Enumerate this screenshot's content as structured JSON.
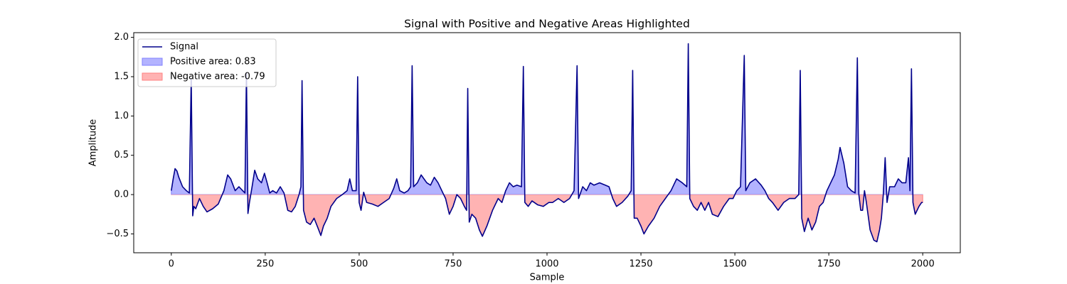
{
  "chart_data": {
    "type": "line",
    "title": "Signal with Positive and Negative Areas Highlighted",
    "x_label": "Sample",
    "y_label": "Amplitude",
    "x": [
      0,
      5,
      10,
      15,
      20,
      30,
      40,
      48,
      53,
      57,
      60,
      65,
      75,
      85,
      95,
      110,
      125,
      140,
      150,
      158,
      170,
      180,
      190,
      196,
      200,
      204,
      208,
      215,
      222,
      230,
      240,
      248,
      255,
      262,
      270,
      280,
      290,
      300,
      310,
      320,
      330,
      340,
      345,
      348,
      352,
      360,
      370,
      380,
      390,
      398,
      405,
      415,
      425,
      440,
      455,
      468,
      475,
      482,
      492,
      496,
      500,
      505,
      512,
      520,
      535,
      550,
      565,
      580,
      592,
      600,
      608,
      620,
      630,
      637,
      641,
      645,
      655,
      665,
      680,
      690,
      700,
      710,
      720,
      730,
      740,
      750,
      760,
      770,
      780,
      786,
      789,
      793,
      800,
      810,
      820,
      828,
      840,
      855,
      870,
      880,
      890,
      900,
      910,
      920,
      932,
      937,
      941,
      950,
      960,
      975,
      990,
      1005,
      1015,
      1030,
      1045,
      1060,
      1072,
      1080,
      1084,
      1095,
      1105,
      1115,
      1125,
      1140,
      1155,
      1165,
      1175,
      1185,
      1200,
      1215,
      1224,
      1228,
      1232,
      1240,
      1250,
      1258,
      1270,
      1285,
      1300,
      1315,
      1330,
      1345,
      1360,
      1372,
      1376,
      1380,
      1390,
      1400,
      1410,
      1420,
      1430,
      1440,
      1455,
      1470,
      1485,
      1495,
      1505,
      1515,
      1525,
      1529,
      1540,
      1555,
      1570,
      1580,
      1590,
      1600,
      1615,
      1630,
      1645,
      1660,
      1670,
      1674,
      1678,
      1685,
      1695,
      1705,
      1715,
      1725,
      1735,
      1745,
      1755,
      1765,
      1775,
      1780,
      1790,
      1800,
      1810,
      1820,
      1826,
      1830,
      1835,
      1840,
      1845,
      1850,
      1860,
      1870,
      1878,
      1885,
      1890,
      1895,
      1900,
      1905,
      1912,
      1925,
      1935,
      1945,
      1955,
      1962,
      1966,
      1970,
      1974,
      1980,
      1990,
      1997,
      2000
    ],
    "series": [
      {
        "name": "Signal",
        "color": "#00008b",
        "values": [
          0.05,
          0.2,
          0.33,
          0.3,
          0.22,
          0.1,
          0.05,
          0.02,
          1.47,
          -0.27,
          -0.15,
          -0.18,
          -0.05,
          -0.15,
          -0.22,
          -0.18,
          -0.12,
          0.05,
          0.25,
          0.2,
          0.05,
          0.1,
          0.05,
          0.02,
          1.55,
          -0.24,
          -0.1,
          0.1,
          0.31,
          0.2,
          0.15,
          0.27,
          0.15,
          0.02,
          0.05,
          0.02,
          0.1,
          0.02,
          -0.2,
          -0.22,
          -0.15,
          0.0,
          0.1,
          1.45,
          -0.2,
          -0.35,
          -0.38,
          -0.3,
          -0.42,
          -0.52,
          -0.4,
          -0.3,
          -0.15,
          -0.05,
          0.0,
          0.05,
          0.2,
          0.05,
          0.05,
          1.5,
          -0.1,
          -0.2,
          0.03,
          -0.1,
          -0.12,
          -0.15,
          -0.1,
          -0.05,
          0.08,
          0.2,
          0.05,
          0.02,
          0.05,
          0.1,
          1.64,
          0.1,
          0.15,
          0.25,
          0.15,
          0.12,
          0.22,
          0.15,
          0.05,
          -0.05,
          -0.25,
          -0.15,
          0.0,
          -0.05,
          -0.15,
          -0.2,
          1.35,
          -0.35,
          -0.25,
          -0.3,
          -0.45,
          -0.53,
          -0.4,
          -0.2,
          -0.05,
          -0.1,
          0.05,
          0.15,
          0.1,
          0.12,
          0.1,
          1.63,
          -0.1,
          -0.15,
          -0.08,
          -0.13,
          -0.15,
          -0.1,
          -0.1,
          -0.05,
          -0.1,
          -0.05,
          0.05,
          1.64,
          -0.05,
          0.1,
          0.05,
          0.15,
          0.12,
          0.15,
          0.12,
          0.1,
          -0.05,
          -0.15,
          -0.1,
          -0.02,
          0.05,
          1.58,
          -0.3,
          -0.3,
          -0.4,
          -0.5,
          -0.4,
          -0.3,
          -0.15,
          -0.05,
          0.05,
          0.2,
          0.15,
          0.1,
          1.92,
          -0.05,
          -0.15,
          -0.2,
          -0.1,
          -0.2,
          -0.1,
          -0.25,
          -0.28,
          -0.15,
          -0.05,
          -0.05,
          0.05,
          0.1,
          1.77,
          0.05,
          0.15,
          0.2,
          0.12,
          0.05,
          -0.05,
          -0.1,
          -0.2,
          -0.1,
          -0.05,
          -0.05,
          0.0,
          1.58,
          -0.3,
          -0.47,
          -0.3,
          -0.45,
          -0.35,
          -0.15,
          -0.1,
          0.05,
          0.15,
          0.25,
          0.45,
          0.6,
          0.4,
          0.1,
          0.05,
          0.02,
          1.74,
          0.0,
          -0.2,
          -0.2,
          0.05,
          -0.1,
          -0.45,
          -0.58,
          -0.6,
          -0.45,
          -0.3,
          0.0,
          0.47,
          -0.1,
          0.1,
          0.1,
          0.2,
          0.15,
          0.15,
          0.47,
          0.05,
          1.6,
          -0.1,
          -0.25,
          -0.15,
          -0.1,
          -0.1
        ]
      }
    ],
    "fills": [
      {
        "name": "Positive area: 0.83",
        "color": "#b3b3ff",
        "edge": "#8080ff",
        "side": "above"
      },
      {
        "name": "Negative area: -0.79",
        "color": "#ffb3b3",
        "edge": "#ff8080",
        "side": "below"
      }
    ],
    "xlim": [
      -100,
      2100
    ],
    "ylim": [
      -0.74,
      2.06
    ],
    "xticks": [
      0,
      250,
      500,
      750,
      1000,
      1250,
      1500,
      1750,
      2000
    ],
    "yticks": [
      {
        "value": -0.5,
        "label": "−0.5"
      },
      {
        "value": 0,
        "label": "0.0"
      },
      0.5,
      {
        "value": 1,
        "label": "1.0"
      },
      1.5,
      {
        "value": 2,
        "label": "2.0"
      }
    ],
    "legend": "upper left"
  }
}
